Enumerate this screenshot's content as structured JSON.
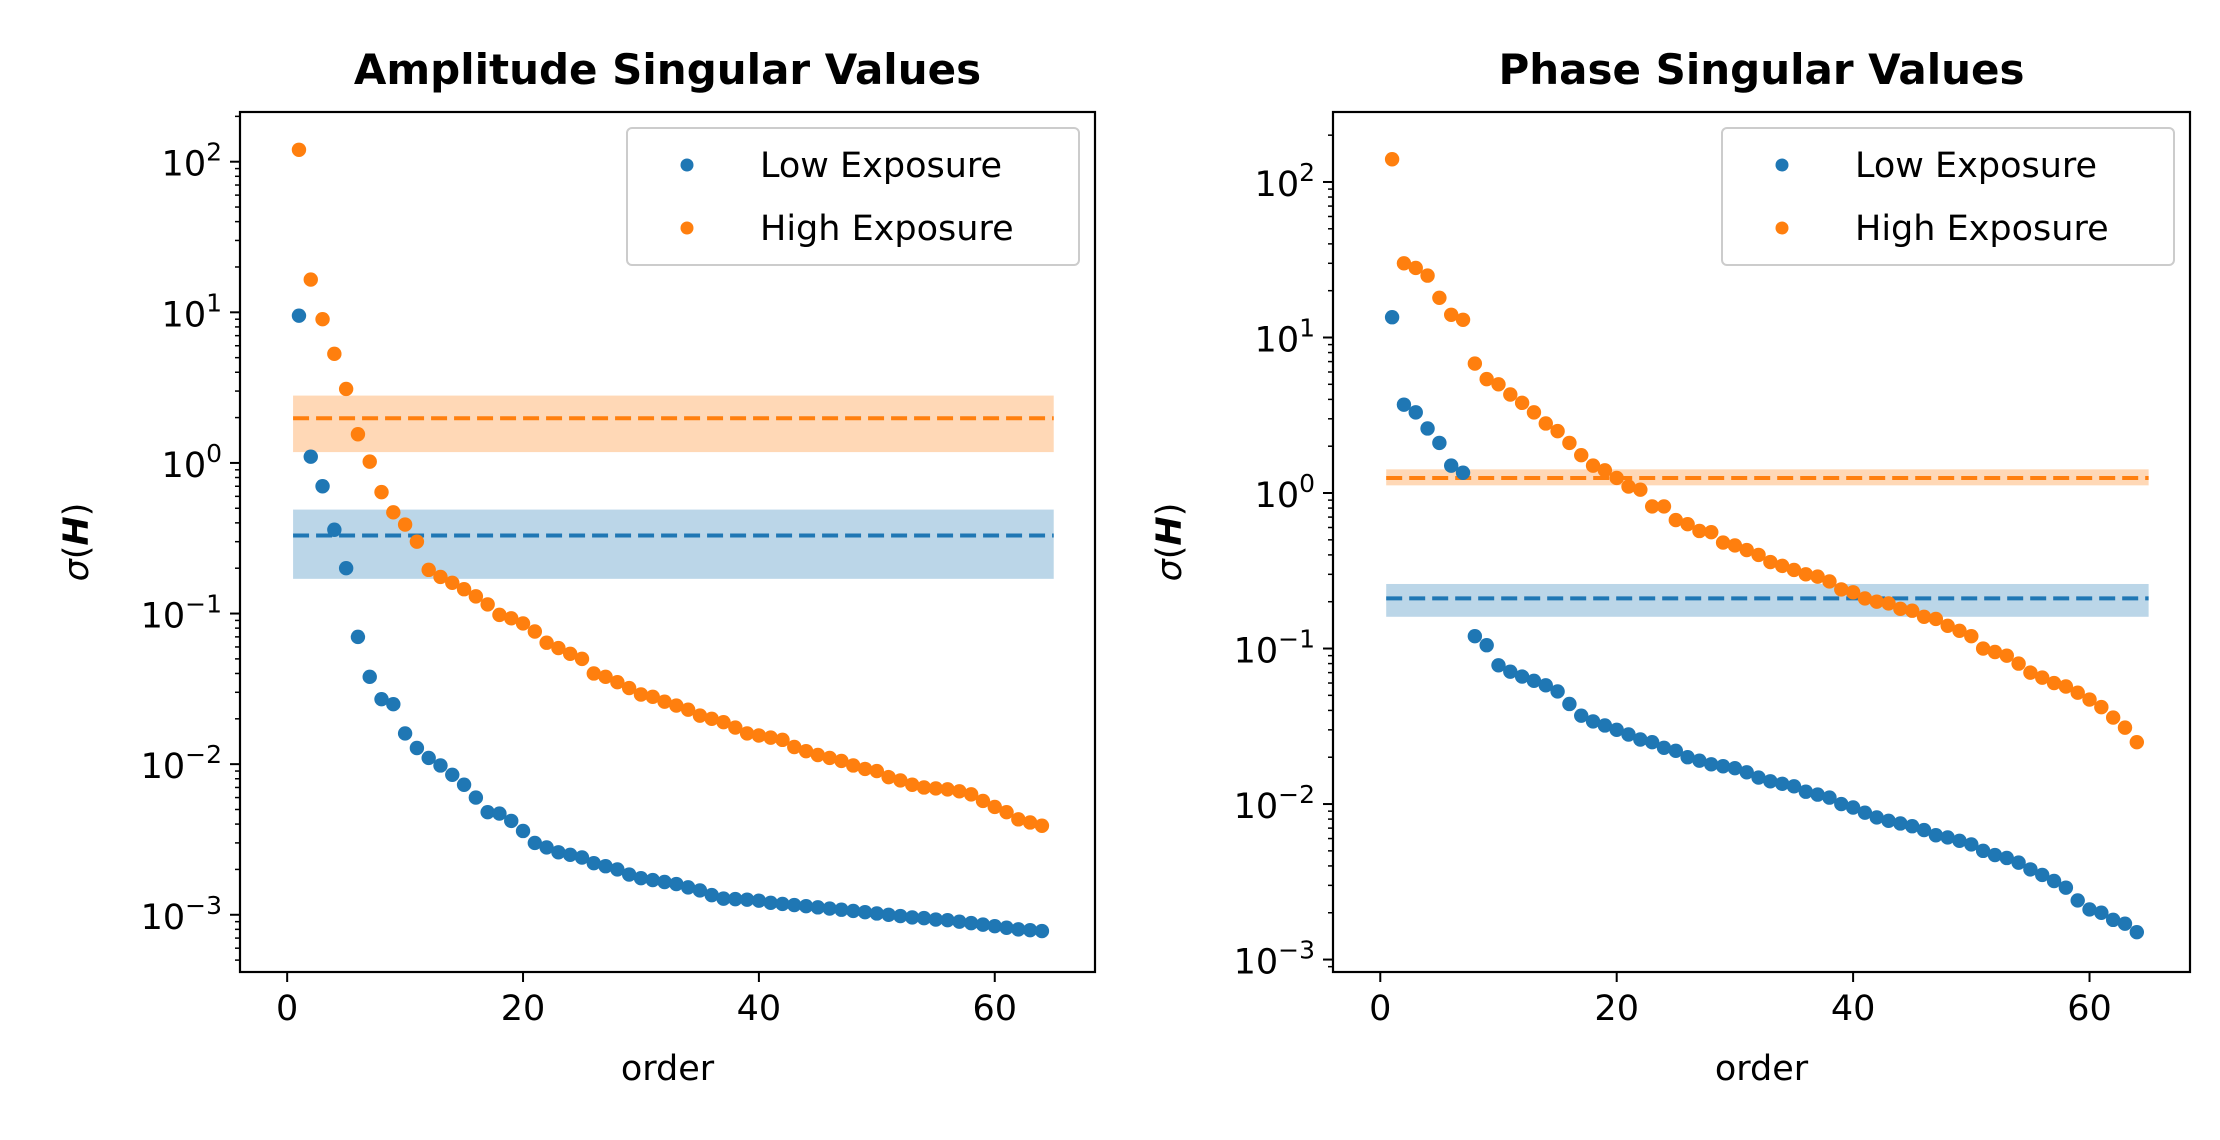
{
  "chart_data": [
    {
      "type": "scatter",
      "title": "Amplitude Singular Values",
      "xlabel": "order",
      "ylabel": "σ(H)",
      "yscale": "log",
      "xlim": [
        -4,
        68.5
      ],
      "ylim_exp": [
        -3.38,
        2.33
      ],
      "xticks": [
        0,
        20,
        40,
        60
      ],
      "yticks_exp": [
        2,
        1,
        0,
        -1,
        -2,
        -3
      ],
      "legend_location": "upper-right",
      "series": [
        {
          "name": "Low Exposure",
          "color": "#1f77b4",
          "x": [
            1,
            2,
            3,
            4,
            5,
            6,
            7,
            8,
            9,
            10,
            11,
            12,
            13,
            14,
            15,
            16,
            17,
            18,
            19,
            20,
            21,
            22,
            23,
            24,
            25,
            26,
            27,
            28,
            29,
            30,
            31,
            32,
            33,
            34,
            35,
            36,
            37,
            38,
            39,
            40,
            41,
            42,
            43,
            44,
            45,
            46,
            47,
            48,
            49,
            50,
            51,
            52,
            53,
            54,
            55,
            56,
            57,
            58,
            59,
            60,
            61,
            62,
            63,
            64
          ],
          "values": [
            9.5,
            1.1,
            0.7,
            0.36,
            0.2,
            0.07,
            0.038,
            0.027,
            0.025,
            0.016,
            0.0128,
            0.011,
            0.0098,
            0.0085,
            0.0073,
            0.006,
            0.0048,
            0.0047,
            0.0042,
            0.0036,
            0.003,
            0.0028,
            0.0026,
            0.0025,
            0.0024,
            0.0022,
            0.0021,
            0.002,
            0.00185,
            0.00175,
            0.0017,
            0.00165,
            0.0016,
            0.00152,
            0.00145,
            0.00135,
            0.00128,
            0.00127,
            0.00126,
            0.00124,
            0.0012,
            0.00118,
            0.00116,
            0.00114,
            0.00112,
            0.0011,
            0.00108,
            0.00106,
            0.00104,
            0.00102,
            0.001,
            0.00098,
            0.00096,
            0.00095,
            0.00093,
            0.00092,
            0.0009,
            0.00088,
            0.00086,
            0.00084,
            0.00082,
            0.0008,
            0.00079,
            0.00078
          ],
          "mean_line": 0.33,
          "band": [
            0.17,
            0.49
          ]
        },
        {
          "name": "High Exposure",
          "color": "#ff7f0e",
          "x": [
            1,
            2,
            3,
            4,
            5,
            6,
            7,
            8,
            9,
            10,
            11,
            12,
            13,
            14,
            15,
            16,
            17,
            18,
            19,
            20,
            21,
            22,
            23,
            24,
            25,
            26,
            27,
            28,
            29,
            30,
            31,
            32,
            33,
            34,
            35,
            36,
            37,
            38,
            39,
            40,
            41,
            42,
            43,
            44,
            45,
            46,
            47,
            48,
            49,
            50,
            51,
            52,
            53,
            54,
            55,
            56,
            57,
            58,
            59,
            60,
            61,
            62,
            63,
            64
          ],
          "values": [
            120,
            16.5,
            9,
            5.3,
            3.1,
            1.55,
            1.02,
            0.64,
            0.47,
            0.39,
            0.3,
            0.195,
            0.175,
            0.16,
            0.145,
            0.13,
            0.115,
            0.098,
            0.093,
            0.086,
            0.076,
            0.064,
            0.059,
            0.054,
            0.05,
            0.04,
            0.038,
            0.035,
            0.032,
            0.029,
            0.028,
            0.026,
            0.0245,
            0.023,
            0.021,
            0.02,
            0.019,
            0.0175,
            0.016,
            0.0155,
            0.015,
            0.0145,
            0.013,
            0.0122,
            0.0115,
            0.011,
            0.0105,
            0.0098,
            0.0093,
            0.009,
            0.0082,
            0.0078,
            0.0073,
            0.007,
            0.0069,
            0.0068,
            0.0066,
            0.0063,
            0.0057,
            0.0052,
            0.0048,
            0.0043,
            0.0041,
            0.0039
          ],
          "mean_line": 1.98,
          "band": [
            1.18,
            2.8
          ]
        }
      ]
    },
    {
      "type": "scatter",
      "title": "Phase Singular Values",
      "xlabel": "order",
      "ylabel": "σ(H)",
      "yscale": "log",
      "xlim": [
        -4,
        68.5
      ],
      "ylim_exp": [
        -3.08,
        2.45
      ],
      "xticks": [
        0,
        20,
        40,
        60
      ],
      "yticks_exp": [
        2,
        1,
        0,
        -1,
        -2,
        -3
      ],
      "legend_location": "upper-right",
      "series": [
        {
          "name": "Low Exposure",
          "color": "#1f77b4",
          "x": [
            1,
            2,
            3,
            4,
            5,
            6,
            7,
            8,
            9,
            10,
            11,
            12,
            13,
            14,
            15,
            16,
            17,
            18,
            19,
            20,
            21,
            22,
            23,
            24,
            25,
            26,
            27,
            28,
            29,
            30,
            31,
            32,
            33,
            34,
            35,
            36,
            37,
            38,
            39,
            40,
            41,
            42,
            43,
            44,
            45,
            46,
            47,
            48,
            49,
            50,
            51,
            52,
            53,
            54,
            55,
            56,
            57,
            58,
            59,
            60,
            61,
            62,
            63,
            64
          ],
          "values": [
            13.5,
            3.7,
            3.3,
            2.6,
            2.1,
            1.5,
            1.35,
            0.12,
            0.105,
            0.078,
            0.071,
            0.066,
            0.062,
            0.058,
            0.053,
            0.044,
            0.037,
            0.034,
            0.032,
            0.03,
            0.028,
            0.026,
            0.025,
            0.023,
            0.022,
            0.02,
            0.019,
            0.018,
            0.0175,
            0.017,
            0.016,
            0.0148,
            0.014,
            0.0135,
            0.013,
            0.012,
            0.0115,
            0.011,
            0.01,
            0.0095,
            0.0088,
            0.0082,
            0.0078,
            0.0075,
            0.0072,
            0.0068,
            0.0063,
            0.0061,
            0.0058,
            0.0055,
            0.005,
            0.0047,
            0.0045,
            0.0042,
            0.0038,
            0.0035,
            0.0032,
            0.0029,
            0.0024,
            0.0021,
            0.002,
            0.0018,
            0.0017,
            0.0015
          ],
          "mean_line": 0.21,
          "band": [
            0.16,
            0.26
          ]
        },
        {
          "name": "High Exposure",
          "color": "#ff7f0e",
          "x": [
            1,
            2,
            3,
            4,
            5,
            6,
            7,
            8,
            9,
            10,
            11,
            12,
            13,
            14,
            15,
            16,
            17,
            18,
            19,
            20,
            21,
            22,
            23,
            24,
            25,
            26,
            27,
            28,
            29,
            30,
            31,
            32,
            33,
            34,
            35,
            36,
            37,
            38,
            39,
            40,
            41,
            42,
            43,
            44,
            45,
            46,
            47,
            48,
            49,
            50,
            51,
            52,
            53,
            54,
            55,
            56,
            57,
            58,
            59,
            60,
            61,
            62,
            63,
            64
          ],
          "values": [
            140,
            30,
            28,
            25,
            18,
            14,
            13,
            6.8,
            5.4,
            5,
            4.3,
            3.8,
            3.3,
            2.8,
            2.5,
            2.1,
            1.75,
            1.5,
            1.4,
            1.25,
            1.1,
            1.05,
            0.82,
            0.82,
            0.67,
            0.63,
            0.57,
            0.56,
            0.48,
            0.46,
            0.43,
            0.4,
            0.36,
            0.34,
            0.32,
            0.3,
            0.29,
            0.27,
            0.24,
            0.23,
            0.21,
            0.2,
            0.195,
            0.18,
            0.175,
            0.16,
            0.155,
            0.14,
            0.13,
            0.12,
            0.1,
            0.095,
            0.09,
            0.08,
            0.07,
            0.065,
            0.06,
            0.057,
            0.052,
            0.047,
            0.042,
            0.036,
            0.031,
            0.025
          ],
          "mean_line": 1.25,
          "band": [
            1.12,
            1.42
          ]
        }
      ]
    }
  ]
}
